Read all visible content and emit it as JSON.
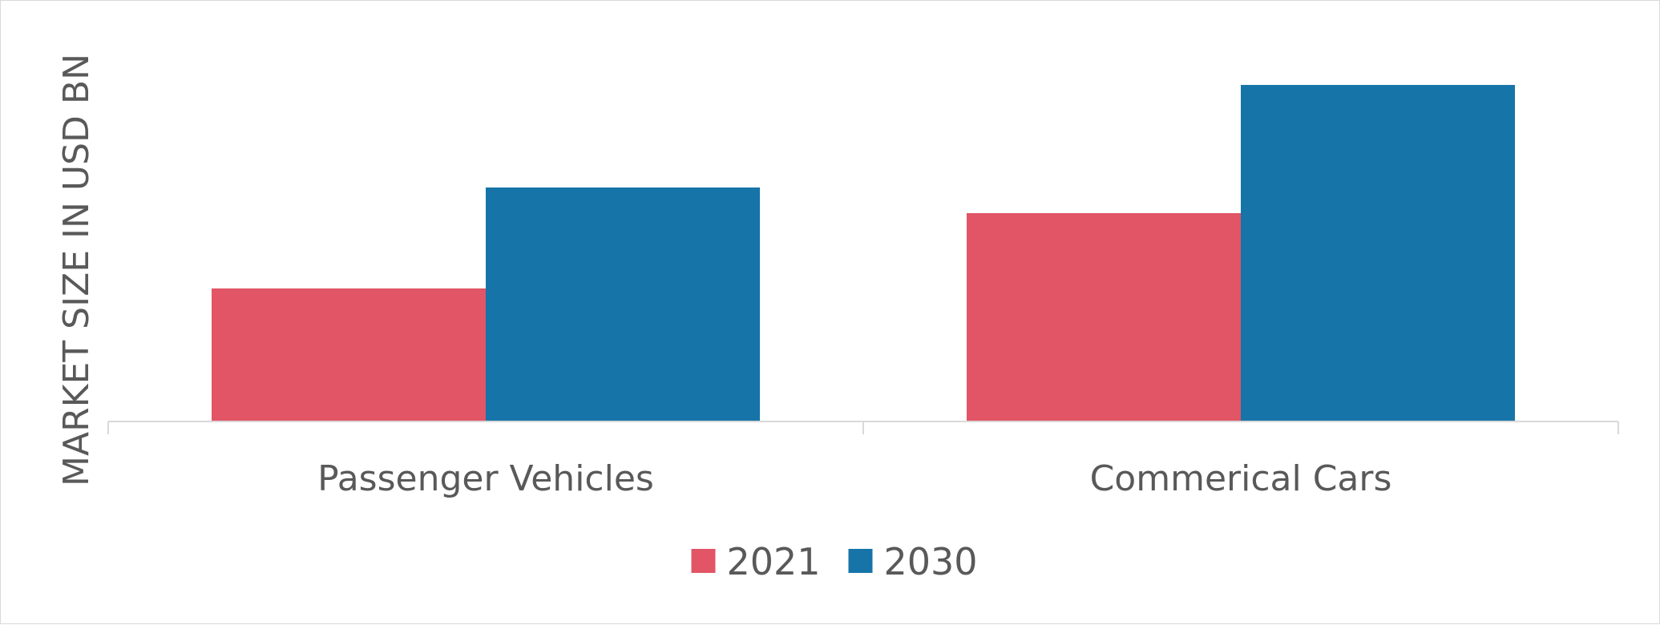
{
  "chart_data": {
    "type": "bar",
    "title": "",
    "xlabel": "",
    "ylabel": "MARKET SIZE IN USD BN",
    "categories": [
      "Passenger Vehicles",
      "Commerical Cars"
    ],
    "series": [
      {
        "name": "2021",
        "color": "#e15566",
        "values": [
          1.66,
          2.6
        ]
      },
      {
        "name": "2030",
        "color": "#1674a8",
        "values": [
          2.92,
          4.2
        ]
      }
    ],
    "ylim": [
      0,
      4.5
    ],
    "grid": false,
    "legend_position": "bottom-center",
    "axis_color": "#d9d9d9"
  }
}
